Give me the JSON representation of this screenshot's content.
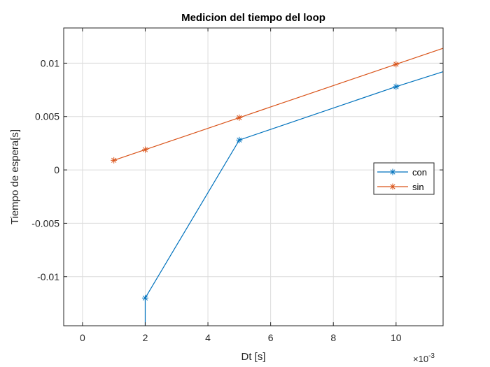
{
  "chart_data": {
    "type": "line",
    "title": "Medicion del tiempo del loop",
    "xlabel": "Dt [s]",
    "ylabel": "Tiempo de espera[s]",
    "x_exponent_label": "×10",
    "x_exponent": "-3",
    "xlim": [
      -0.0006,
      0.0115
    ],
    "ylim": [
      -0.0146,
      0.0133
    ],
    "xticks": [
      0,
      0.002,
      0.004,
      0.006,
      0.008,
      0.01
    ],
    "xtick_labels": [
      "0",
      "2",
      "4",
      "6",
      "8",
      "10"
    ],
    "yticks": [
      -0.01,
      -0.005,
      0,
      0.005,
      0.01
    ],
    "ytick_labels": [
      "-0.01",
      "-0.005",
      "0",
      "0.005",
      "0.01"
    ],
    "grid": true,
    "legend_position": "right",
    "series": [
      {
        "name": "con",
        "color": "#0072BD",
        "marker": "*",
        "x": [
          0.002,
          0.002,
          0.005,
          0.01,
          0.0115
        ],
        "y": [
          -0.0146,
          -0.012,
          0.0028,
          0.0078,
          0.0092
        ],
        "marker_indices": [
          1,
          2,
          3
        ]
      },
      {
        "name": "sin",
        "color": "#D95319",
        "marker": "*",
        "x": [
          0.001,
          0.002,
          0.005,
          0.01,
          0.0115
        ],
        "y": [
          0.0009,
          0.0019,
          0.0049,
          0.0099,
          0.0114
        ],
        "marker_indices": [
          0,
          1,
          2,
          3
        ]
      }
    ]
  }
}
